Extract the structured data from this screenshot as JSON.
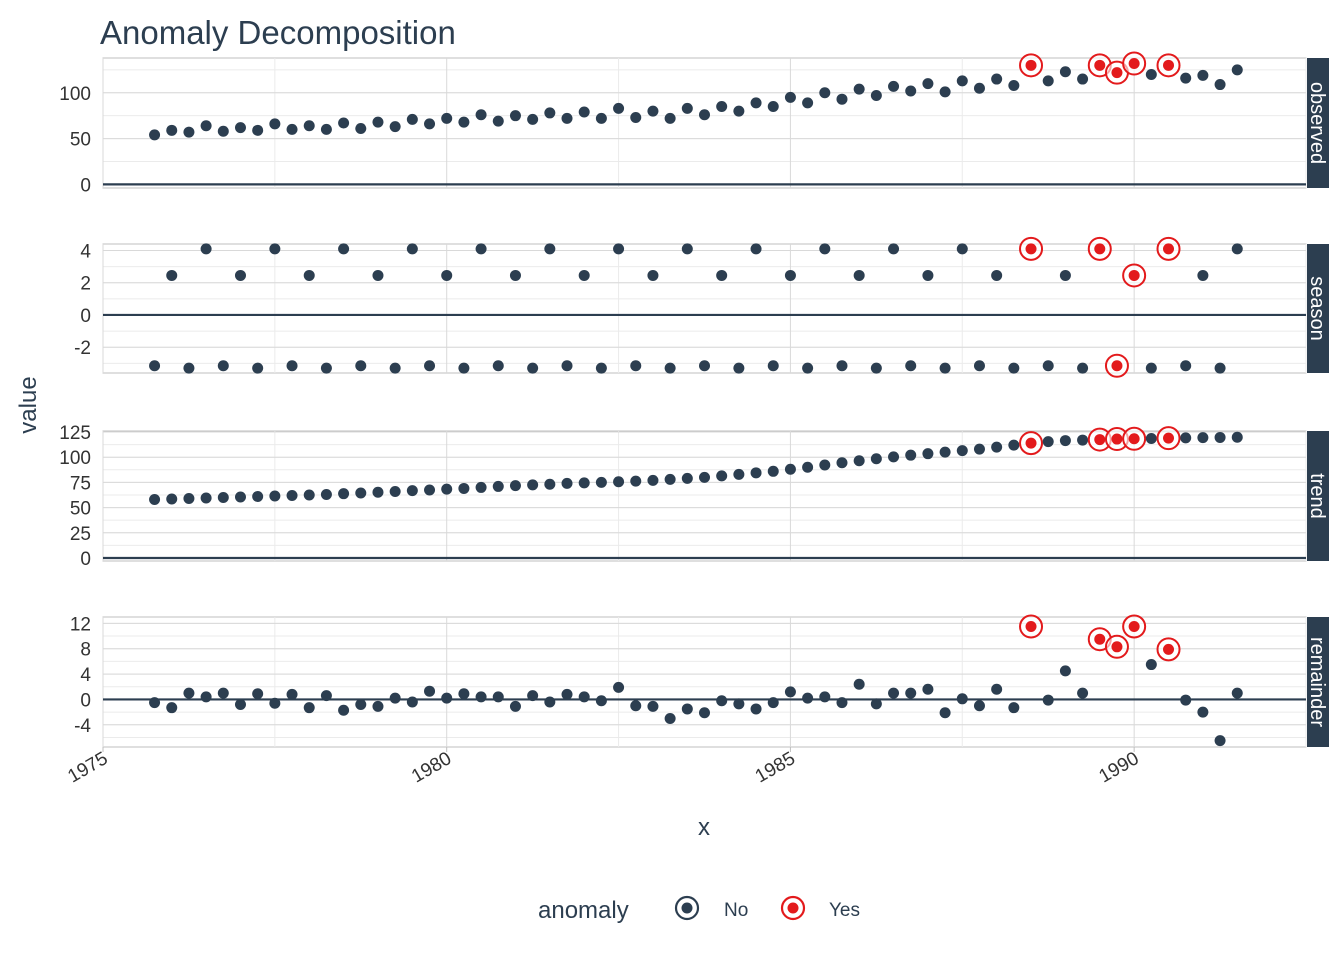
{
  "colors": {
    "no": "#2c3e50",
    "yes": "#e31a1c",
    "strip": "#2c3e50",
    "grid": "#d9d9d9",
    "frame": "#bfbfbf"
  },
  "legend": {
    "title": "anomaly",
    "items": [
      {
        "key": "No",
        "label": "No"
      },
      {
        "key": "Yes",
        "label": "Yes"
      }
    ]
  },
  "chart_data": {
    "type": "scatter",
    "title": "Anomaly Decomposition",
    "xlabel": "x",
    "ylabel": "value",
    "xlim": [
      1975,
      1992.5
    ],
    "x_ticks": [
      1975,
      1980,
      1985,
      1990
    ],
    "x_tick_labels": [
      "1975",
      "1980",
      "1985",
      "1990"
    ],
    "grid": true,
    "legend_position": "bottom",
    "start_year": 1975.75,
    "step": 0.25,
    "anomaly_indices": [
      51,
      55,
      56,
      57,
      59
    ],
    "panels": [
      {
        "name": "observed",
        "ylim": [
          -4,
          138
        ],
        "y_ticks": [
          0,
          50,
          100
        ],
        "values": [
          54,
          59,
          57,
          64,
          58,
          62,
          59,
          66,
          60,
          64,
          60,
          67,
          61,
          68,
          63,
          71,
          66,
          72,
          68,
          76,
          69,
          75,
          71,
          78,
          72,
          79,
          72,
          83,
          73,
          80,
          72,
          83,
          76,
          85,
          80,
          89,
          85,
          95,
          89,
          100,
          93,
          104,
          97,
          107,
          102,
          110,
          101,
          113,
          105,
          115,
          108,
          130,
          113,
          123,
          115,
          130,
          122,
          132,
          120,
          130,
          116,
          119,
          109,
          125
        ]
      },
      {
        "name": "season",
        "ylim": [
          -3.6,
          4.4
        ],
        "y_ticks": [
          -2,
          0,
          2,
          4
        ],
        "y_tick_labels": [
          "-2",
          "0",
          "2",
          "4"
        ],
        "values": [
          -3.15,
          2.45,
          -3.3,
          4.1,
          -3.15,
          2.45,
          -3.3,
          4.1,
          -3.15,
          2.45,
          -3.3,
          4.1,
          -3.15,
          2.45,
          -3.3,
          4.1,
          -3.15,
          2.45,
          -3.3,
          4.1,
          -3.15,
          2.45,
          -3.3,
          4.1,
          -3.15,
          2.45,
          -3.3,
          4.1,
          -3.15,
          2.45,
          -3.3,
          4.1,
          -3.15,
          2.45,
          -3.3,
          4.1,
          -3.15,
          2.45,
          -3.3,
          4.1,
          -3.15,
          2.45,
          -3.3,
          4.1,
          -3.15,
          2.45,
          -3.3,
          4.1,
          -3.15,
          2.45,
          -3.3,
          4.1,
          -3.15,
          2.45,
          -3.3,
          4.1,
          -3.15,
          2.45,
          -3.3,
          4.1,
          -3.15,
          2.45,
          -3.3,
          4.1
        ]
      },
      {
        "name": "trend",
        "ylim": [
          -3,
          126
        ],
        "y_ticks": [
          0,
          25,
          50,
          75,
          100,
          125
        ],
        "values": [
          58,
          58.5,
          59,
          59.5,
          60,
          60.5,
          61,
          61.5,
          62,
          62.5,
          63,
          63.8,
          64.5,
          65.2,
          66,
          66.8,
          67.5,
          68.3,
          69,
          70,
          71,
          71.8,
          72.5,
          73.2,
          74,
          74.5,
          75,
          75.6,
          76.3,
          77,
          78,
          79,
          80,
          81.5,
          83,
          84.5,
          86,
          88,
          90,
          92.3,
          94.5,
          96.5,
          98.5,
          100.3,
          102,
          103.5,
          105,
          106.5,
          108,
          110,
          112,
          114,
          115.5,
          116.5,
          117,
          117.5,
          118,
          118.3,
          118.6,
          118.9,
          119.2,
          119.4,
          119.6,
          119.8
        ]
      },
      {
        "name": "remainder",
        "ylim": [
          -7.5,
          13
        ],
        "y_ticks": [
          -4,
          0,
          4,
          8,
          12
        ],
        "y_tick_labels": [
          "-4",
          "0",
          "4",
          "8",
          "12"
        ],
        "values": [
          -0.5,
          -1.3,
          1.0,
          0.4,
          1.0,
          -0.8,
          0.9,
          -0.6,
          0.8,
          -1.3,
          0.6,
          -1.7,
          -0.8,
          -1.1,
          0.2,
          -0.4,
          1.3,
          0.2,
          0.9,
          0.4,
          0.4,
          -1.1,
          0.6,
          -0.4,
          0.8,
          0.4,
          -0.2,
          1.9,
          -1.0,
          -1.1,
          -3.0,
          -1.5,
          -2.1,
          -0.2,
          -0.7,
          -1.5,
          -0.5,
          1.2,
          0.2,
          0.4,
          -0.5,
          2.4,
          -0.7,
          1.0,
          1.0,
          1.6,
          -2.1,
          0.1,
          -1.0,
          1.6,
          -1.3,
          11.5,
          -0.1,
          4.5,
          1.0,
          9.5,
          8.3,
          11.5,
          5.5,
          7.9,
          -0.1,
          -2.0,
          -6.5,
          1.0
        ]
      }
    ]
  }
}
